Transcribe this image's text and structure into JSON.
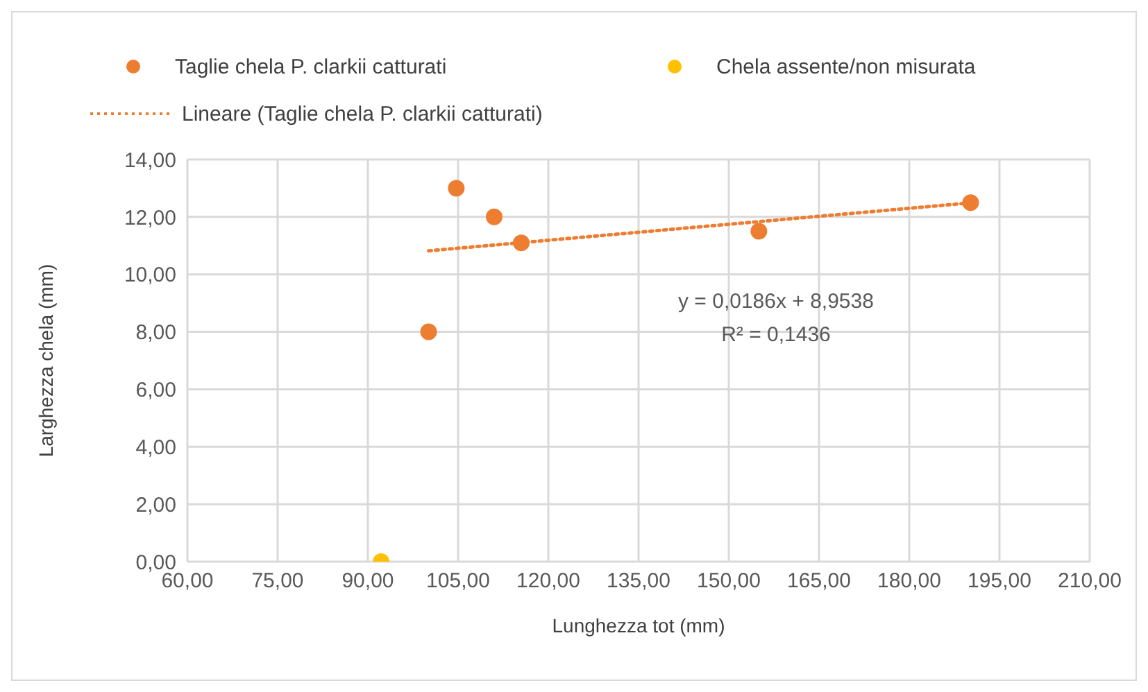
{
  "chart_data": {
    "type": "scatter",
    "xlabel": "Lunghezza tot (mm)",
    "ylabel": "Larghezza chela (mm)",
    "series": [
      {
        "name": "Taglie chela P. clarkii catturati",
        "color": "#ed7d31",
        "x": [
          100.1,
          104.7,
          111.0,
          115.5,
          155.0,
          190.2
        ],
        "values": [
          8.0,
          13.0,
          12.0,
          11.1,
          11.5,
          12.5
        ]
      },
      {
        "name": "Chela assente/non misurata",
        "color": "#ffc000",
        "x": [
          92.2
        ],
        "values": [
          0
        ]
      },
      {
        "name": "Lineare (Taglie chela P. clarkii catturati)",
        "type": "line",
        "line_style": "dotted",
        "marker": "none",
        "color": "#ed7d31",
        "x": [
          100.1,
          190.2
        ],
        "values": [
          10.82,
          12.49
        ]
      }
    ],
    "xlim": [
      60,
      210
    ],
    "xticks": [
      {
        "value": 60,
        "label": "60,00"
      },
      {
        "value": 75,
        "label": "75,00"
      },
      {
        "value": 90,
        "label": "90,00"
      },
      {
        "value": 105,
        "label": "105,00"
      },
      {
        "value": 120,
        "label": "120,00"
      },
      {
        "value": 135,
        "label": "135,00"
      },
      {
        "value": 150,
        "label": "150,00"
      },
      {
        "value": 165,
        "label": "165,00"
      },
      {
        "value": 180,
        "label": "180,00"
      },
      {
        "value": 195,
        "label": "195,00"
      },
      {
        "value": 210,
        "label": "210,00"
      }
    ],
    "ylim": [
      0,
      14
    ],
    "yticks": [
      {
        "value": 0,
        "label": "0,00"
      },
      {
        "value": 2,
        "label": "2,00"
      },
      {
        "value": 4,
        "label": "4,00"
      },
      {
        "value": 6,
        "label": "6,00"
      },
      {
        "value": 8,
        "label": "8,00"
      },
      {
        "value": 10,
        "label": "10,00"
      },
      {
        "value": 12,
        "label": "12,00"
      },
      {
        "value": 14,
        "label": "14,00"
      }
    ],
    "annotations": [
      "y = 0,0186x + 8,9538",
      "R² = 0,1436"
    ],
    "grid": true,
    "legend": "top",
    "marker": "circle"
  }
}
